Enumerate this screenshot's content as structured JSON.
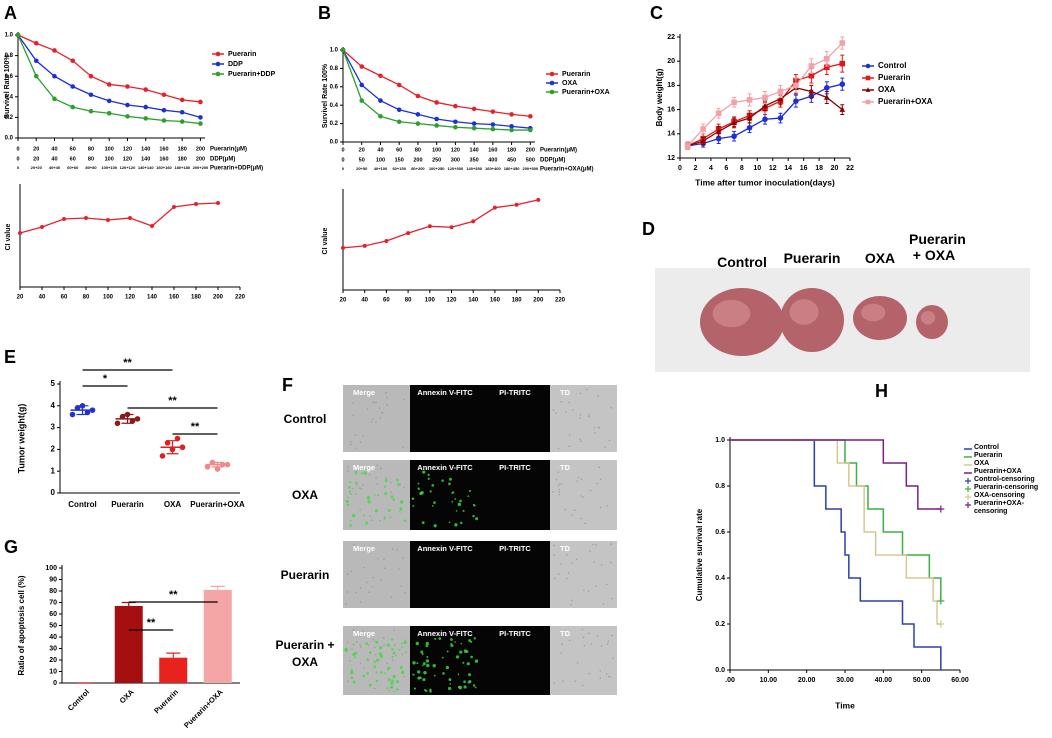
{
  "chart_data": [
    {
      "type": "line",
      "panel": "A",
      "ylabel": "Survivel Rate 100%",
      "x": [
        0,
        20,
        40,
        60,
        80,
        100,
        120,
        140,
        160,
        180,
        200
      ],
      "xlim": [
        0,
        205
      ],
      "xticks": [
        0,
        20,
        40,
        60,
        80,
        100,
        120,
        140,
        160,
        180,
        200
      ],
      "tick_rows": [
        {
          "name": "Puerarin(μM)"
        },
        {
          "name": "DDP(μM)",
          "labels": [
            0,
            20,
            40,
            60,
            80,
            100,
            120,
            140,
            160,
            180,
            200
          ]
        },
        {
          "name": "Puerarin+DDP(μM)",
          "labels": [
            "0",
            "20+20",
            "40+40",
            "60+60",
            "80+80",
            "100+100",
            "120+120",
            "140+140",
            "160+160",
            "180+180",
            "200+200"
          ]
        }
      ],
      "ylim": [
        0,
        1.0
      ],
      "yticks": [
        {
          "value": 0,
          "label": "0.0"
        },
        {
          "value": 0.2,
          "label": "0.2"
        },
        {
          "value": 0.4,
          "label": "0.4"
        },
        {
          "value": 0.6,
          "label": "0.6"
        },
        {
          "value": 0.8,
          "label": "0.8"
        },
        {
          "value": 1.0,
          "label": "1.0"
        }
      ],
      "series": [
        {
          "name": "Puerarin",
          "color": "#e8202a",
          "values": [
            1.0,
            0.92,
            0.85,
            0.75,
            0.6,
            0.52,
            0.5,
            0.47,
            0.42,
            0.37,
            0.35
          ]
        },
        {
          "name": "DDP",
          "color": "#1c2fd9",
          "values": [
            1.0,
            0.75,
            0.6,
            0.5,
            0.42,
            0.36,
            0.32,
            0.3,
            0.27,
            0.25,
            0.2
          ]
        },
        {
          "name": "Puerarin+DDP",
          "color": "#2ca02c",
          "values": [
            1.0,
            0.6,
            0.38,
            0.3,
            0.26,
            0.24,
            0.21,
            0.19,
            0.17,
            0.16,
            0.14
          ]
        }
      ]
    },
    {
      "type": "line",
      "ylabel": "CI value",
      "x": [
        20,
        40,
        60,
        80,
        100,
        120,
        140,
        160,
        180,
        200
      ],
      "xlim": [
        20,
        220
      ],
      "xticks": [
        20,
        40,
        60,
        80,
        100,
        120,
        140,
        160,
        180,
        200,
        220
      ],
      "ylim": [
        0,
        1.0
      ],
      "series": [
        {
          "color": "#e8202a",
          "values": [
            0.54,
            0.6,
            0.68,
            0.69,
            0.67,
            0.69,
            0.61,
            0.8,
            0.83,
            0.84
          ]
        }
      ]
    },
    {
      "type": "line",
      "panel": "B",
      "ylabel": "Survivel Rate 100%",
      "x": [
        0,
        20,
        40,
        60,
        80,
        100,
        120,
        140,
        160,
        180,
        200
      ],
      "xlim": [
        0,
        205
      ],
      "xticks": [
        0,
        20,
        40,
        60,
        80,
        100,
        120,
        140,
        160,
        180,
        200
      ],
      "tick_rows": [
        {
          "name": "Puerarin(μM)"
        },
        {
          "name": "DDP(μM)",
          "labels": [
            0,
            50,
            100,
            150,
            200,
            250,
            300,
            350,
            400,
            450,
            500
          ]
        },
        {
          "name": "Puerarin+OXA(μM)",
          "labels": [
            "0",
            "20+50",
            "40+100",
            "60+150",
            "80+200",
            "100+250",
            "120+300",
            "140+350",
            "160+400",
            "180+450",
            "200+500"
          ]
        }
      ],
      "ylim": [
        0,
        1.0
      ],
      "yticks": [
        {
          "value": 0,
          "label": "0.0"
        },
        {
          "value": 0.2,
          "label": "0.2"
        },
        {
          "value": 0.4,
          "label": "0.4"
        },
        {
          "value": 0.6,
          "label": "0.6"
        },
        {
          "value": 0.8,
          "label": "0.8"
        },
        {
          "value": 1.0,
          "label": "1.0"
        }
      ],
      "series": [
        {
          "name": "Puerarin",
          "color": "#e8202a",
          "values": [
            1.0,
            0.82,
            0.72,
            0.62,
            0.5,
            0.43,
            0.39,
            0.36,
            0.33,
            0.3,
            0.28
          ]
        },
        {
          "name": "OXA",
          "color": "#1c2fd9",
          "values": [
            1.0,
            0.62,
            0.45,
            0.35,
            0.3,
            0.25,
            0.22,
            0.2,
            0.19,
            0.17,
            0.15
          ]
        },
        {
          "name": "Puerarin+OXA",
          "color": "#2ca02c",
          "values": [
            1.0,
            0.45,
            0.28,
            0.22,
            0.2,
            0.18,
            0.16,
            0.15,
            0.14,
            0.13,
            0.13
          ]
        }
      ]
    },
    {
      "type": "line",
      "ylabel": "CI value",
      "x": [
        20,
        40,
        60,
        80,
        100,
        120,
        140,
        160,
        180,
        200
      ],
      "xlim": [
        20,
        220
      ],
      "xticks": [
        20,
        40,
        60,
        80,
        100,
        120,
        140,
        160,
        180,
        200,
        220
      ],
      "ylim": [
        0,
        1.0
      ],
      "series": [
        {
          "color": "#e8202a",
          "values": [
            0.43,
            0.45,
            0.5,
            0.58,
            0.65,
            0.64,
            0.7,
            0.84,
            0.87,
            0.92
          ]
        }
      ]
    },
    {
      "type": "line",
      "panel": "C",
      "ylabel": "Body weight(g)",
      "xlabel": "Time after tumor inoculation(days)",
      "x": [
        1,
        3,
        5,
        7,
        9,
        11,
        13,
        15,
        17,
        19,
        21
      ],
      "xlim": [
        0,
        22
      ],
      "xticks": [
        0,
        2,
        4,
        6,
        8,
        10,
        12,
        14,
        16,
        18,
        20,
        22
      ],
      "ylim": [
        12,
        22
      ],
      "yticks": [
        12,
        14,
        16,
        18,
        20,
        22
      ],
      "series": [
        {
          "name": "Control",
          "color": "#1c2fd9",
          "marker": "circle",
          "values": [
            13.0,
            13.2,
            13.6,
            13.8,
            14.5,
            15.2,
            15.3,
            16.7,
            17.1,
            17.8,
            18.1
          ],
          "errors": [
            0.3,
            0.3,
            0.4,
            0.4,
            0.4,
            0.4,
            0.4,
            0.5,
            0.5,
            0.5,
            0.5
          ]
        },
        {
          "name": "Puerarin",
          "color": "#e01a1a",
          "marker": "square",
          "values": [
            13.0,
            13.6,
            14.4,
            15.0,
            15.5,
            16.1,
            16.7,
            18.4,
            18.8,
            19.5,
            19.8
          ],
          "errors": [
            0.3,
            0.4,
            0.4,
            0.4,
            0.4,
            0.5,
            0.5,
            0.5,
            0.6,
            0.6,
            0.7
          ]
        },
        {
          "name": "OXA",
          "color": "#8b0000",
          "marker": "triangle",
          "values": [
            13.0,
            13.4,
            14.2,
            14.9,
            15.3,
            16.3,
            16.9,
            17.8,
            17.5,
            17.0,
            16.0
          ],
          "errors": [
            0.3,
            0.3,
            0.4,
            0.4,
            0.4,
            0.4,
            0.5,
            0.5,
            0.5,
            0.5,
            0.4
          ]
        },
        {
          "name": "Puerarin+OXA",
          "color": "#f4a0a8",
          "marker": "square",
          "values": [
            13.0,
            14.4,
            15.7,
            16.6,
            16.8,
            17.0,
            17.5,
            18.0,
            19.6,
            20.2,
            21.5
          ],
          "errors": [
            0.3,
            0.4,
            0.4,
            0.4,
            0.5,
            0.5,
            0.5,
            0.6,
            0.6,
            0.6,
            0.5
          ]
        }
      ]
    },
    {
      "type": "dot",
      "panel": "E",
      "ylabel": "Tumor weight(g)",
      "categories": [
        "Control",
        "Puerarin",
        "OXA",
        "Puerarin+OXA"
      ],
      "colors": [
        "#2233cc",
        "#8b1a1a",
        "#e02020",
        "#f08a8a"
      ],
      "points": [
        [
          3.6,
          3.9,
          4.0,
          3.7,
          3.8
        ],
        [
          3.2,
          3.5,
          3.6,
          3.3,
          3.4
        ],
        [
          1.7,
          2.3,
          2.0,
          2.5,
          2.1
        ],
        [
          1.2,
          1.4,
          1.1,
          1.3,
          1.3
        ]
      ],
      "means": [
        3.8,
        3.4,
        2.1,
        1.3
      ],
      "errors": [
        0.2,
        0.2,
        0.3,
        0.1
      ],
      "ylim": [
        0,
        5
      ],
      "yticks": [
        0,
        1,
        2,
        3,
        4,
        5
      ],
      "annotations": [
        {
          "text": "**",
          "between": [
            "Control",
            "OXA"
          ]
        },
        {
          "text": "*",
          "between": [
            "Control",
            "Puerarin"
          ]
        },
        {
          "text": "**",
          "between": [
            "Puerarin",
            "Puerarin+OXA"
          ]
        },
        {
          "text": "**",
          "between": [
            "OXA",
            "Puerarin+OXA"
          ]
        }
      ]
    },
    {
      "type": "bar",
      "panel": "G",
      "ylabel": "Ratio of apoptosis cell (%)",
      "categories": [
        "Control",
        "OXA",
        "Puerarin",
        "Puerarin+OXA"
      ],
      "colors": [
        "#a50f0f",
        "#a50f0f",
        "#e8231e",
        "#f4a6a6"
      ],
      "values": [
        0,
        67,
        22,
        81
      ],
      "errors": [
        0,
        3,
        4,
        3
      ],
      "ylim": [
        0,
        100
      ],
      "yticks": [
        0,
        10,
        20,
        30,
        40,
        50,
        60,
        70,
        80,
        90,
        100
      ],
      "annotations": [
        {
          "text": "**",
          "between": [
            "OXA",
            "Puerarin"
          ]
        },
        {
          "text": "**",
          "between": [
            "OXA",
            "Puerarin+OXA"
          ]
        }
      ]
    },
    {
      "type": "survival",
      "panel": "H",
      "ylabel": "Cumulative survival rate",
      "xlabel": "Time",
      "xlim": [
        0,
        60
      ],
      "xticks": [
        {
          "value": 0,
          "label": ".00"
        },
        {
          "value": 10,
          "label": "10.00"
        },
        {
          "value": 20,
          "label": "20.00"
        },
        {
          "value": 30,
          "label": "30.00"
        },
        {
          "value": 40,
          "label": "40.00"
        },
        {
          "value": 50,
          "label": "50.00"
        },
        {
          "value": 60,
          "label": "60.00"
        }
      ],
      "ylim": [
        0,
        1.0
      ],
      "yticks": [
        {
          "value": 0,
          "label": "0.0"
        },
        {
          "value": 0.2,
          "label": "0.2"
        },
        {
          "value": 0.4,
          "label": "0.4"
        },
        {
          "value": 0.6,
          "label": "0.6"
        },
        {
          "value": 0.8,
          "label": "0.8"
        },
        {
          "value": 1.0,
          "label": "1.0"
        }
      ],
      "series": [
        {
          "name": "Control",
          "color": "#2b3fb0",
          "x": [
            0,
            22,
            25,
            29,
            30,
            31,
            34,
            45,
            48,
            55
          ],
          "values": [
            1.0,
            0.8,
            0.7,
            0.6,
            0.5,
            0.4,
            0.3,
            0.2,
            0.1,
            0.0
          ]
        },
        {
          "name": "Puerarin",
          "color": "#3cb043",
          "x": [
            0,
            30,
            33,
            36,
            40,
            45,
            52,
            55
          ],
          "values": [
            1.0,
            0.9,
            0.8,
            0.7,
            0.6,
            0.5,
            0.4,
            0.3
          ]
        },
        {
          "name": "OXA",
          "color": "#d8c890",
          "x": [
            0,
            28,
            31,
            35,
            38,
            46,
            53,
            54
          ],
          "values": [
            1.0,
            0.9,
            0.8,
            0.6,
            0.5,
            0.4,
            0.3,
            0.2
          ]
        },
        {
          "name": "Puerarin+OXA",
          "color": "#7b1f82",
          "x": [
            0,
            40,
            46,
            49
          ],
          "values": [
            1.0,
            0.9,
            0.8,
            0.7
          ]
        }
      ],
      "censoring": [
        {
          "name": "Control-censoring",
          "color": "#2b3fb0",
          "x": [],
          "values": []
        },
        {
          "name": "Puerarin-censoring",
          "color": "#3cb043",
          "x": [
            55
          ],
          "values": [
            0.3
          ]
        },
        {
          "name": "OXA-censoring",
          "color": "#d8c890",
          "x": [
            55
          ],
          "values": [
            0.2
          ]
        },
        {
          "name": "Puerarin+OXA-censoring",
          "color": "#7b1f82",
          "x": [
            55
          ],
          "values": [
            0.7
          ]
        }
      ]
    }
  ],
  "panel_d": {
    "letter": "D",
    "groups": [
      "Control",
      "Puerarin",
      "OXA",
      "Puerarin + OXA"
    ]
  },
  "panel_f": {
    "letter": "F",
    "columns": [
      "Merge",
      "Annexin V-FITC",
      "PI-TRITC",
      "TD"
    ],
    "rows": [
      "Control",
      "OXA",
      "Puerarin",
      "Puerarin + OXA"
    ]
  }
}
